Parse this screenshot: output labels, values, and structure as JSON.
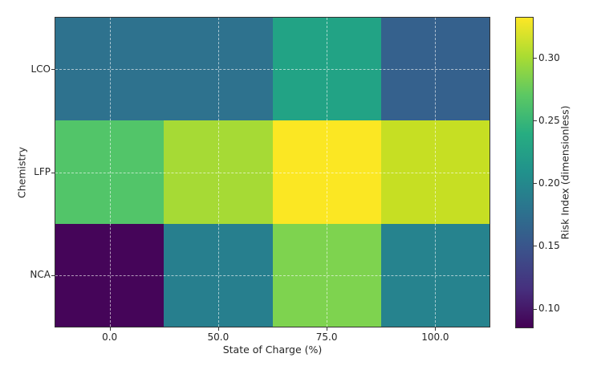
{
  "chart_data": {
    "type": "heatmap",
    "title": "",
    "xlabel": "State of Charge (%)",
    "ylabel": "Chemistry",
    "x_tick_labels": [
      "0.0",
      "50.0",
      "75.0",
      "100.0"
    ],
    "y_tick_labels": [
      "LCO",
      "LFP",
      "NCA"
    ],
    "grid": true,
    "colormap": "viridis",
    "rows": [
      {
        "chemistry": "LCO",
        "values": [
          0.18,
          0.18,
          0.23,
          0.16
        ],
        "colors": [
          "#2e728e",
          "#2e728e",
          "#22a385",
          "#35618d"
        ]
      },
      {
        "chemistry": "LFP",
        "values": [
          0.27,
          0.3,
          0.33,
          0.31
        ],
        "colors": [
          "#52c569",
          "#a6da35",
          "#fbe723",
          "#c6df23"
        ]
      },
      {
        "chemistry": "NCA",
        "values": [
          0.09,
          0.19,
          0.28,
          0.2
        ],
        "colors": [
          "#450559",
          "#277f8e",
          "#7ed34f",
          "#26838e"
        ]
      }
    ],
    "colorbar": {
      "label": "Risk Index (dimensionless)",
      "vmin": 0.085,
      "vmax": 0.332,
      "tick_labels": [
        "0.30",
        "0.25",
        "0.20",
        "0.15",
        "0.10"
      ]
    }
  }
}
